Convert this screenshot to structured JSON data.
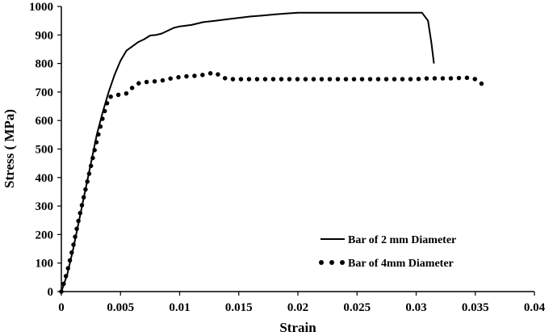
{
  "chart_data": {
    "type": "line",
    "title": "",
    "xlabel": "Strain",
    "ylabel": "Stress ( MPa)",
    "xlim": [
      0,
      0.04
    ],
    "ylim": [
      0,
      1000
    ],
    "xticks": [
      0,
      0.005,
      0.01,
      0.015,
      0.02,
      0.025,
      0.03,
      0.035,
      0.04
    ],
    "xtick_labels": [
      "0",
      "0.005",
      "0.01",
      "0.015",
      "0.02",
      "0.025",
      "0.03",
      "0.035",
      "0.04"
    ],
    "yticks": [
      0,
      100,
      200,
      300,
      400,
      500,
      600,
      700,
      800,
      900,
      1000
    ],
    "ytick_labels": [
      "0",
      "100",
      "200",
      "300",
      "400",
      "500",
      "600",
      "700",
      "800",
      "900",
      "1000"
    ],
    "grid": false,
    "legend_position": "bottom-right",
    "series": [
      {
        "name": "Bar of 2 mm Diameter",
        "style": "solid",
        "color": "#000000",
        "x": [
          0,
          0.0005,
          0.001,
          0.0015,
          0.002,
          0.0025,
          0.003,
          0.0035,
          0.004,
          0.0045,
          0.005,
          0.0055,
          0.006,
          0.0065,
          0.007,
          0.0075,
          0.008,
          0.0085,
          0.009,
          0.0095,
          0.01,
          0.011,
          0.012,
          0.013,
          0.014,
          0.015,
          0.016,
          0.017,
          0.018,
          0.019,
          0.02,
          0.022,
          0.025,
          0.028,
          0.0305,
          0.031,
          0.0313,
          0.0315
        ],
        "y": [
          0,
          60,
          150,
          250,
          350,
          450,
          550,
          630,
          700,
          760,
          810,
          845,
          860,
          875,
          885,
          898,
          900,
          905,
          915,
          925,
          930,
          935,
          945,
          950,
          955,
          960,
          965,
          968,
          972,
          975,
          978,
          978,
          978,
          978,
          978,
          950,
          870,
          800
        ]
      },
      {
        "name": "Bar of 4mm Diameter",
        "style": "dotted",
        "color": "#000000",
        "x": [
          0,
          0.0005,
          0.001,
          0.0015,
          0.002,
          0.0025,
          0.003,
          0.0035,
          0.004,
          0.0045,
          0.005,
          0.0055,
          0.006,
          0.0065,
          0.007,
          0.0075,
          0.008,
          0.0085,
          0.009,
          0.0095,
          0.01,
          0.0105,
          0.011,
          0.0115,
          0.012,
          0.0125,
          0.013,
          0.0135,
          0.014,
          0.015,
          0.016,
          0.017,
          0.018,
          0.019,
          0.02,
          0.021,
          0.022,
          0.023,
          0.024,
          0.025,
          0.026,
          0.027,
          0.028,
          0.029,
          0.03,
          0.031,
          0.032,
          0.033,
          0.034,
          0.0345,
          0.035,
          0.0355,
          0.0358
        ],
        "y": [
          0,
          70,
          160,
          260,
          350,
          440,
          530,
          610,
          680,
          690,
          690,
          695,
          715,
          730,
          735,
          735,
          738,
          740,
          745,
          750,
          752,
          755,
          755,
          758,
          760,
          765,
          768,
          755,
          745,
          745,
          745,
          745,
          745,
          745,
          745,
          745,
          745,
          745,
          745,
          745,
          745,
          745,
          745,
          745,
          745,
          748,
          748,
          748,
          750,
          750,
          745,
          730,
          720
        ]
      }
    ]
  }
}
